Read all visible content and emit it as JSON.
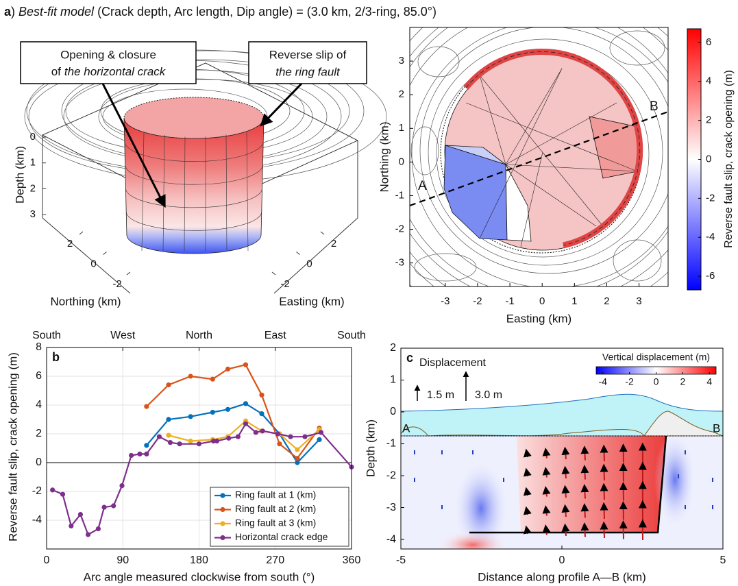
{
  "header": {
    "panel": "a",
    "title_parts": [
      ")",
      "Best-fit model",
      "(Crack depth, Arc length, Dip angle) = (3.0 km, 2/3-ring, 85.0°)"
    ]
  },
  "chart_data": [
    {
      "type": "model3d",
      "callouts": [
        {
          "line1": "Opening & closure",
          "line2": "of",
          "line2_italic": "the horizontal crack"
        },
        {
          "line1": "Reverse slip of",
          "line2_italic": "the ring fault"
        }
      ],
      "zlabel": "Depth (km)",
      "zticks": [
        0,
        1,
        2,
        3
      ],
      "xlabel": "Northing (km)",
      "xticks": [
        2,
        0,
        -2
      ],
      "ylabel": "Easting (km)",
      "yticks": [
        2,
        0,
        -2
      ]
    },
    {
      "type": "map",
      "xlabel": "Easting (km)",
      "ylabel": "Northing (km)",
      "xlim": [
        -4.1,
        3.9
      ],
      "ylim": [
        -3.7,
        4
      ],
      "xticks": [
        -3,
        -2,
        -1,
        0,
        1,
        2,
        3
      ],
      "yticks": [
        -3,
        -2,
        -1,
        0,
        1,
        2,
        3
      ],
      "profile_labels": [
        "A",
        "B"
      ],
      "colorbar": {
        "label": "Reverse fault slip, crack opening (m)",
        "clim": [
          -6.7,
          6.7
        ],
        "ticks": [
          -6,
          -4,
          -2,
          0,
          2,
          4,
          6
        ]
      }
    },
    {
      "type": "line",
      "panel": "b",
      "xlabel": "Arc angle measured clockwise from south (°)",
      "ylabel": "Reverse fault slip, crack opening (m)",
      "xlim": [
        0,
        360
      ],
      "xticks": [
        0,
        90,
        180,
        270,
        360
      ],
      "top_ticks": [
        {
          "value": 0,
          "label": "South"
        },
        {
          "value": 90,
          "label": "West"
        },
        {
          "value": 180,
          "label": "North"
        },
        {
          "value": 270,
          "label": "East"
        },
        {
          "value": 360,
          "label": "South"
        }
      ],
      "ylim": [
        -6,
        8
      ],
      "yticks": [
        -4,
        -2,
        0,
        2,
        4,
        6,
        8
      ],
      "grid": true,
      "legend": "lower-right",
      "series": [
        {
          "name": "Ring fault at 1 (km)",
          "color": "#0072BD",
          "x": [
            118,
            144,
            170,
            196,
            214,
            235,
            254,
            275,
            296,
            322
          ],
          "values": [
            1.2,
            3.0,
            3.2,
            3.5,
            3.7,
            4.1,
            3.4,
            2.0,
            0.0,
            1.6
          ]
        },
        {
          "name": "Ring fault at 2 (km)",
          "color": "#D95319",
          "x": [
            118,
            144,
            170,
            196,
            214,
            235,
            254,
            275,
            296,
            322
          ],
          "values": [
            3.9,
            5.4,
            6.0,
            5.8,
            6.5,
            6.8,
            4.7,
            1.3,
            0.3,
            2.4
          ]
        },
        {
          "name": "Ring fault at 3 (km)",
          "color": "#EDB120",
          "x": [
            144,
            170,
            196,
            214,
            235,
            254,
            275,
            296,
            322
          ],
          "values": [
            1.9,
            1.5,
            1.6,
            1.8,
            2.9,
            2.2,
            2.0,
            0.9,
            2.3
          ]
        },
        {
          "name": "Horizontal crack edge",
          "color": "#7E2F8E",
          "x": [
            7,
            19,
            29,
            40,
            49,
            61,
            68,
            79,
            89,
            100,
            110,
            118,
            133,
            146,
            157,
            180,
            197,
            201,
            215,
            226,
            235,
            247,
            255,
            273,
            288,
            305,
            324,
            360
          ],
          "values": [
            -1.9,
            -2.2,
            -4.4,
            -3.6,
            -5.0,
            -4.6,
            -3.1,
            -3.0,
            -1.6,
            0.5,
            0.6,
            0.6,
            1.8,
            1.4,
            1.3,
            1.3,
            1.5,
            1.5,
            1.7,
            1.8,
            2.7,
            2.1,
            2.2,
            2.0,
            1.8,
            1.8,
            2.1,
            -0.3
          ]
        }
      ]
    },
    {
      "type": "section",
      "panel": "c",
      "xlabel": "Distance along profile A—B (km)",
      "ylabel": "Depth (km)",
      "xlim": [
        -5,
        5
      ],
      "xticks": [
        -5,
        0,
        5
      ],
      "ylim": [
        -4.3,
        2
      ],
      "yticks": [
        -4,
        -3,
        -2,
        -1,
        0,
        1,
        2
      ],
      "legend_title": "Displacement",
      "legend_scales": [
        "1.5 m",
        "3.0 m"
      ],
      "profile_labels": [
        "A",
        "B"
      ],
      "colorbar": {
        "label": "Vertical displacement (m)",
        "clim": [
          -4.5,
          4.5
        ],
        "ticks": [
          -4,
          -2,
          0,
          2,
          4
        ]
      }
    }
  ]
}
